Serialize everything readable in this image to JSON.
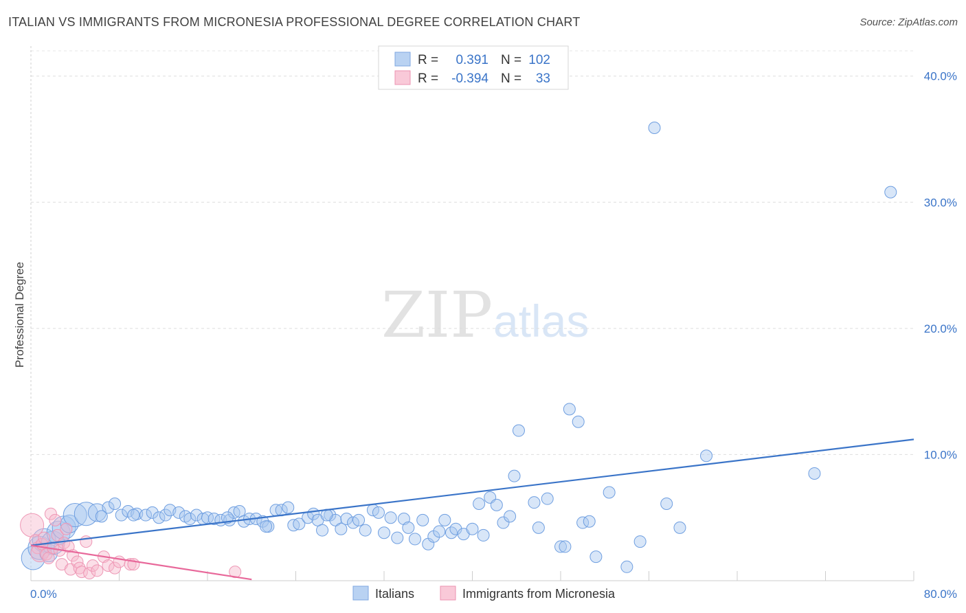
{
  "title": "ITALIAN VS IMMIGRANTS FROM MICRONESIA PROFESSIONAL DEGREE CORRELATION CHART",
  "source": "Source: ZipAtlas.com",
  "watermark": {
    "zip": "ZIP",
    "atlas": "atlas"
  },
  "colors": {
    "blue": "#3a74c8",
    "blue_fill": "#a9c8f0",
    "pink": "#e8689a",
    "pink_fill": "#f7b9cc"
  },
  "legend_top": [
    {
      "r_label": "R =",
      "r_value": "0.391",
      "n_label": "N =",
      "n_value": "102"
    },
    {
      "r_label": "R =",
      "r_value": "-0.394",
      "n_label": "N =",
      "n_value": "33"
    }
  ],
  "legend_bottom": [
    "Italians",
    "Immigrants from Micronesia"
  ],
  "chart_data": {
    "type": "scatter",
    "title": "ITALIAN VS IMMIGRANTS FROM MICRONESIA PROFESSIONAL DEGREE CORRELATION CHART",
    "xlabel": "",
    "ylabel": "Professional Degree",
    "xlim": [
      0,
      80
    ],
    "ylim": [
      0,
      42
    ],
    "x_tick_labels": [
      "0.0%",
      "80.0%"
    ],
    "y_ticks": [
      10,
      20,
      30,
      40
    ],
    "y_tick_labels": [
      "10.0%",
      "20.0%",
      "30.0%",
      "40.0%"
    ],
    "grid": true,
    "series": [
      {
        "name": "Italians",
        "r": 0.391,
        "n": 102,
        "trend": [
          [
            0,
            2.8
          ],
          [
            80,
            11.2
          ]
        ],
        "points": [
          [
            0.2,
            1.8,
            3
          ],
          [
            0.8,
            2.6,
            3
          ],
          [
            1.2,
            3.2,
            3
          ],
          [
            1.6,
            2.2,
            2
          ],
          [
            2.0,
            3.0,
            3
          ],
          [
            2.5,
            3.8,
            3
          ],
          [
            3.0,
            4.2,
            3
          ],
          [
            3.5,
            4.5,
            2
          ],
          [
            4.0,
            5.2,
            3
          ],
          [
            5.0,
            5.3,
            3
          ],
          [
            6.0,
            5.4,
            2
          ],
          [
            7.0,
            5.8,
            1
          ],
          [
            7.6,
            6.1,
            1
          ],
          [
            8.2,
            5.2,
            1
          ],
          [
            8.8,
            5.5,
            1
          ],
          [
            9.6,
            5.3,
            1
          ],
          [
            10.4,
            5.2,
            1
          ],
          [
            11.0,
            5.4,
            1
          ],
          [
            11.6,
            5.0,
            1
          ],
          [
            12.2,
            5.2,
            1
          ],
          [
            12.6,
            5.6,
            1
          ],
          [
            13.4,
            5.4,
            1
          ],
          [
            14.0,
            5.1,
            1
          ],
          [
            14.4,
            4.9,
            1
          ],
          [
            15.0,
            5.2,
            1
          ],
          [
            15.6,
            4.9,
            1
          ],
          [
            16.0,
            5.0,
            1
          ],
          [
            16.6,
            4.9,
            1
          ],
          [
            17.2,
            4.8,
            1
          ],
          [
            18.0,
            4.8,
            1
          ],
          [
            18.4,
            5.4,
            1
          ],
          [
            18.9,
            5.5,
            1
          ],
          [
            19.3,
            4.7,
            1
          ],
          [
            19.8,
            4.9,
            1
          ],
          [
            20.4,
            4.9,
            1
          ],
          [
            21.0,
            4.7,
            1
          ],
          [
            21.5,
            4.3,
            1
          ],
          [
            22.2,
            5.6,
            1
          ],
          [
            22.7,
            5.6,
            1
          ],
          [
            23.3,
            5.8,
            1
          ],
          [
            23.8,
            4.4,
            1
          ],
          [
            24.3,
            4.5,
            1
          ],
          [
            25.1,
            5.0,
            1
          ],
          [
            25.6,
            5.3,
            1
          ],
          [
            26.0,
            4.8,
            1
          ],
          [
            26.4,
            4.0,
            1
          ],
          [
            27.1,
            5.2,
            1
          ],
          [
            27.6,
            4.8,
            1
          ],
          [
            28.1,
            4.1,
            1
          ],
          [
            28.6,
            4.9,
            1
          ],
          [
            29.2,
            4.6,
            1
          ],
          [
            29.7,
            4.8,
            1
          ],
          [
            30.3,
            4.0,
            1
          ],
          [
            31.0,
            5.6,
            1
          ],
          [
            31.5,
            5.4,
            1
          ],
          [
            32.0,
            3.8,
            1
          ],
          [
            32.6,
            5.0,
            1
          ],
          [
            33.2,
            3.4,
            1
          ],
          [
            33.8,
            4.9,
            1
          ],
          [
            34.2,
            4.2,
            1
          ],
          [
            34.8,
            3.3,
            1
          ],
          [
            35.5,
            4.8,
            1
          ],
          [
            36.0,
            2.9,
            1
          ],
          [
            36.5,
            3.5,
            1
          ],
          [
            37.0,
            3.9,
            1
          ],
          [
            37.5,
            4.8,
            1
          ],
          [
            38.1,
            3.8,
            1
          ],
          [
            38.5,
            4.1,
            1
          ],
          [
            39.2,
            3.7,
            1
          ],
          [
            40.0,
            4.1,
            1
          ],
          [
            40.6,
            6.1,
            1
          ],
          [
            41.0,
            3.6,
            1
          ],
          [
            41.6,
            6.6,
            1
          ],
          [
            42.2,
            6.0,
            1
          ],
          [
            42.8,
            4.6,
            1
          ],
          [
            43.4,
            5.1,
            1
          ],
          [
            43.8,
            8.3,
            1
          ],
          [
            44.2,
            11.9,
            1
          ],
          [
            45.6,
            6.2,
            1
          ],
          [
            46.0,
            4.2,
            1
          ],
          [
            46.8,
            6.5,
            1
          ],
          [
            48.0,
            2.7,
            1
          ],
          [
            48.4,
            2.7,
            1
          ],
          [
            48.8,
            13.6,
            1
          ],
          [
            49.6,
            12.6,
            1
          ],
          [
            50.0,
            4.6,
            1
          ],
          [
            50.6,
            4.7,
            1
          ],
          [
            51.2,
            1.9,
            1
          ],
          [
            52.4,
            7.0,
            1
          ],
          [
            54.0,
            1.1,
            1
          ],
          [
            55.2,
            3.1,
            1
          ],
          [
            56.5,
            35.9,
            1
          ],
          [
            57.6,
            6.1,
            1
          ],
          [
            58.8,
            4.2,
            1
          ],
          [
            61.2,
            9.9,
            1
          ],
          [
            71.0,
            8.5,
            1
          ],
          [
            77.9,
            30.8,
            1
          ],
          [
            26.8,
            5.2,
            1
          ],
          [
            21.3,
            4.3,
            1
          ],
          [
            17.8,
            5.0,
            1
          ],
          [
            9.3,
            5.2,
            1
          ],
          [
            6.4,
            5.1,
            1
          ]
        ]
      },
      {
        "name": "Immigrants from Micronesia",
        "r": -0.394,
        "n": 33,
        "trend": [
          [
            0,
            2.8
          ],
          [
            20,
            0.1
          ]
        ],
        "points": [
          [
            0.1,
            4.4,
            3
          ],
          [
            0.4,
            3.2,
            1
          ],
          [
            0.6,
            2.6,
            1
          ],
          [
            0.8,
            2.2,
            2
          ],
          [
            1.0,
            2.9,
            1
          ],
          [
            1.2,
            3.4,
            1
          ],
          [
            1.4,
            2.1,
            1
          ],
          [
            1.6,
            1.8,
            1
          ],
          [
            1.8,
            5.3,
            1
          ],
          [
            2.0,
            2.6,
            1
          ],
          [
            2.2,
            4.8,
            1
          ],
          [
            2.4,
            3.6,
            1
          ],
          [
            2.6,
            2.4,
            1
          ],
          [
            2.8,
            1.3,
            1
          ],
          [
            3.0,
            3.0,
            1
          ],
          [
            3.2,
            4.1,
            1
          ],
          [
            3.4,
            2.7,
            1
          ],
          [
            3.6,
            0.9,
            1
          ],
          [
            3.8,
            2.0,
            1
          ],
          [
            4.2,
            1.5,
            1
          ],
          [
            4.4,
            1.0,
            1
          ],
          [
            4.6,
            0.7,
            1
          ],
          [
            5.0,
            3.1,
            1
          ],
          [
            5.3,
            0.6,
            1
          ],
          [
            5.6,
            1.2,
            1
          ],
          [
            6.0,
            0.8,
            1
          ],
          [
            6.6,
            1.9,
            1
          ],
          [
            7.0,
            1.2,
            1
          ],
          [
            7.6,
            1.0,
            1
          ],
          [
            8.0,
            1.5,
            1
          ],
          [
            9.0,
            1.3,
            1
          ],
          [
            9.3,
            1.3,
            1
          ],
          [
            18.5,
            0.7,
            1
          ]
        ]
      }
    ]
  }
}
